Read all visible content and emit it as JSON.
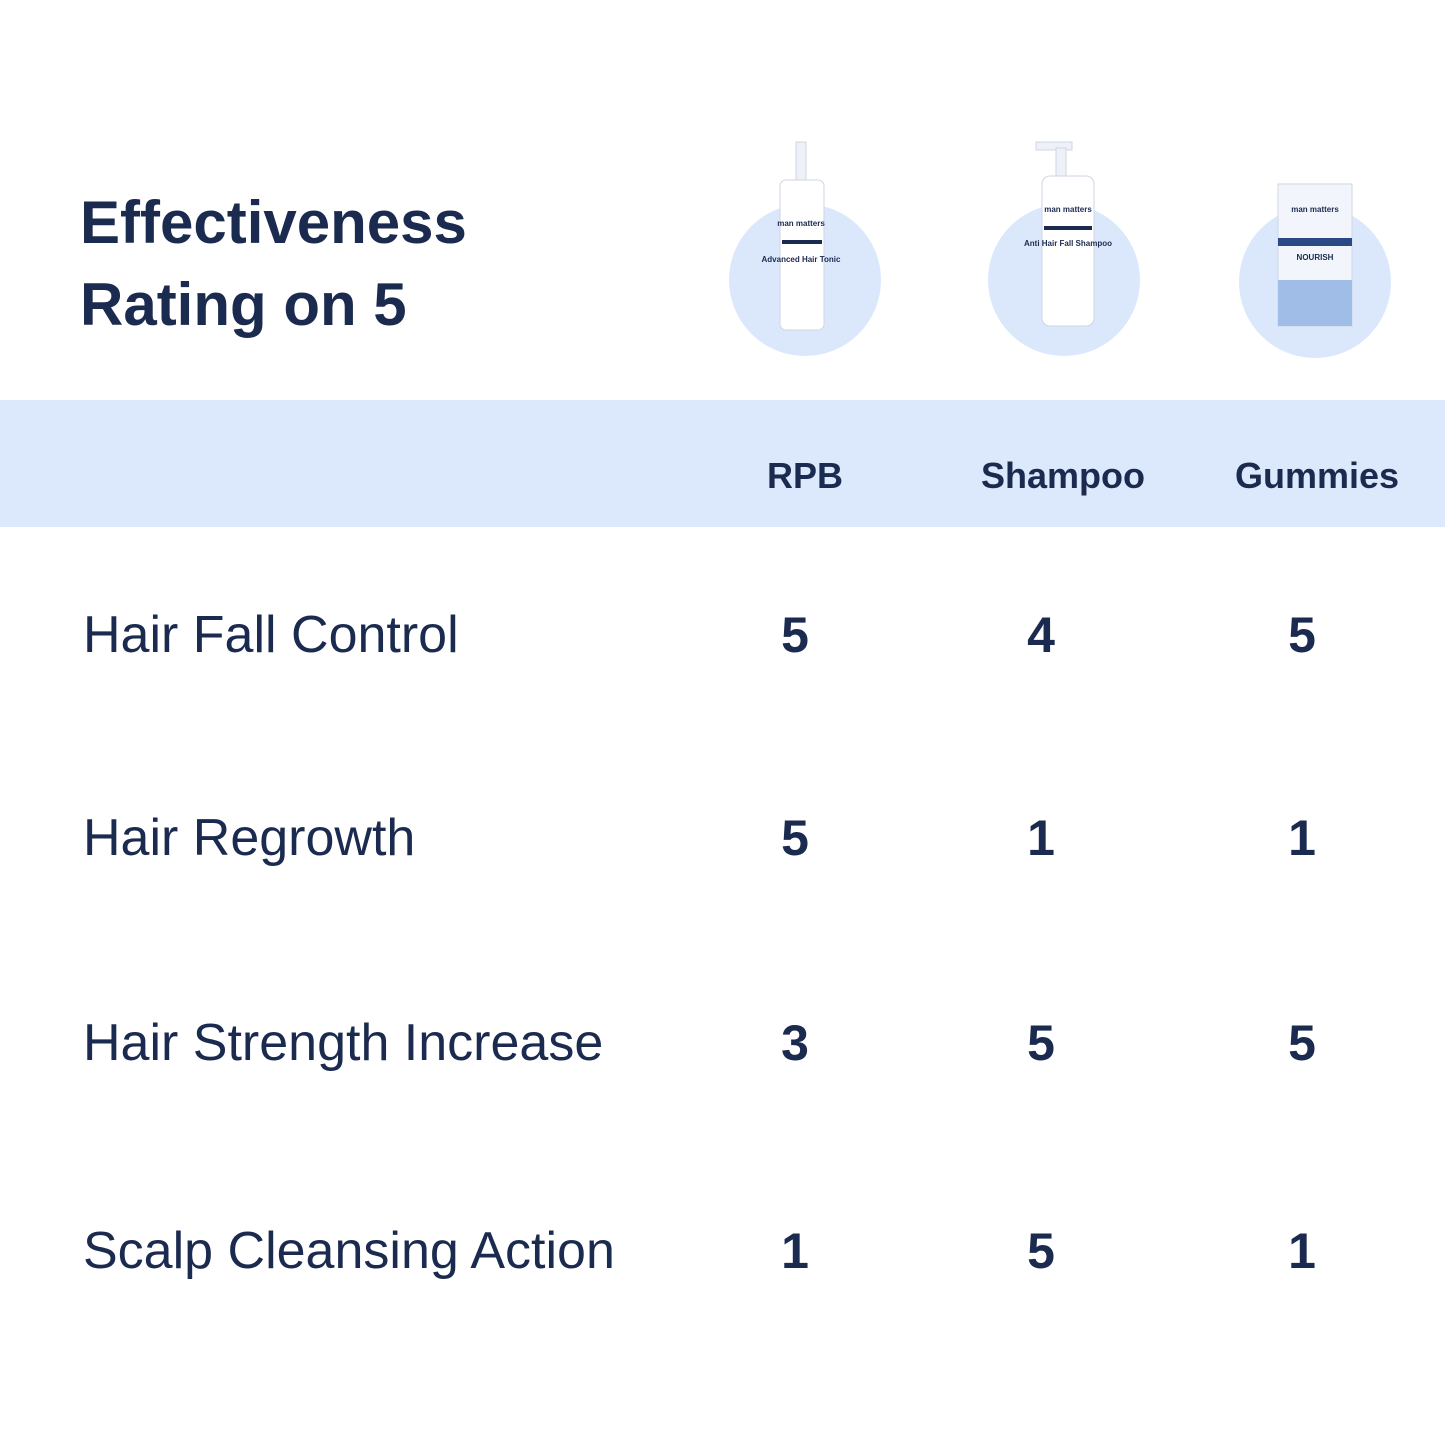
{
  "title_lines": [
    "Effectiveness",
    "Rating on 5"
  ],
  "products": [
    {
      "brand": "man matters",
      "name": "Advanced Hair Tonic"
    },
    {
      "brand": "man matters",
      "name": "Anti Hair Fall Shampoo"
    },
    {
      "brand": "man matters",
      "name": "NOURISH"
    }
  ],
  "table": {
    "columns": [
      "RPB",
      "Shampoo",
      "Gummies"
    ],
    "rows": [
      {
        "label": "Hair Fall Control",
        "values": [
          5,
          4,
          5
        ]
      },
      {
        "label": "Hair Regrowth",
        "values": [
          5,
          1,
          1
        ]
      },
      {
        "label": "Hair Strength Increase",
        "values": [
          3,
          5,
          5
        ]
      },
      {
        "label": "Scalp Cleansing Action",
        "values": [
          1,
          5,
          1
        ]
      }
    ]
  }
}
